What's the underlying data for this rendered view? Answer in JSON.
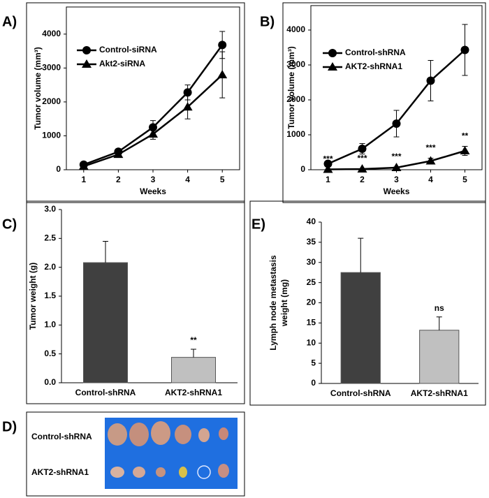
{
  "chart_data": [
    {
      "type": "line",
      "panel_label": "A)",
      "xlabel": "Weeks",
      "ylabel": "Tumor volume (mm³)",
      "categories": [
        "1",
        "2",
        "3",
        "4",
        "5"
      ],
      "ylim": [
        0,
        4800
      ],
      "yticks": [
        0,
        1000,
        2000,
        3000,
        4000
      ],
      "grid": false,
      "series": [
        {
          "name": "Control-siRNA",
          "color": "#000000",
          "marker": "circle",
          "values": [
            150,
            530,
            1250,
            2280,
            3680
          ],
          "errors": [
            50,
            80,
            200,
            220,
            400
          ]
        },
        {
          "name": "Akt2-siRNA",
          "color": "#000000",
          "marker": "triangle",
          "values": [
            100,
            450,
            1050,
            1850,
            2800
          ],
          "errors": [
            40,
            60,
            150,
            350,
            680
          ]
        }
      ]
    },
    {
      "type": "line",
      "panel_label": "B)",
      "xlabel": "Weeks",
      "ylabel": "Tumor volume (mm³)",
      "categories": [
        "1",
        "2",
        "3",
        "4",
        "5"
      ],
      "ylim": [
        0,
        4700
      ],
      "yticks": [
        0,
        1000,
        2000,
        3000,
        4000
      ],
      "grid": false,
      "annotations": [
        "***",
        "***",
        "***",
        "***",
        "**"
      ],
      "series": [
        {
          "name": "Control-shRNA",
          "color": "#000000",
          "marker": "circle",
          "values": [
            170,
            600,
            1320,
            2550,
            3430
          ],
          "errors": [
            30,
            150,
            380,
            580,
            730
          ]
        },
        {
          "name": "AKT2-shRNA1",
          "color": "#000000",
          "marker": "triangle",
          "values": [
            10,
            20,
            60,
            250,
            540
          ],
          "errors": [
            5,
            10,
            20,
            80,
            130
          ]
        }
      ]
    },
    {
      "type": "bar",
      "panel_label": "C)",
      "ylabel": "Tumor weight (g)",
      "categories": [
        "Control-shRNA",
        "AKT2-shRNA1"
      ],
      "values": [
        2.08,
        0.44
      ],
      "errors": [
        0.37,
        0.14
      ],
      "colors": [
        "#404040",
        "#c0c0c0"
      ],
      "annotations": [
        null,
        "**"
      ],
      "ylim": [
        0,
        3
      ],
      "yticks": [
        {
          "value": 0,
          "label": "0.0"
        },
        0.5,
        {
          "value": 1,
          "label": "1.0"
        },
        1.5,
        {
          "value": 2,
          "label": "2.0"
        },
        2.5,
        {
          "value": 3,
          "label": "3.0"
        }
      ],
      "grid": false
    },
    {
      "type": "bar",
      "panel_label": "E)",
      "ylabel": [
        "Lymph node metastasis",
        "weight (mg)"
      ],
      "categories": [
        "Control-shRNA",
        "AKT2-shRNA1"
      ],
      "values": [
        27.5,
        13.2
      ],
      "errors": [
        8.5,
        3.3
      ],
      "colors": [
        "#404040",
        "#c0c0c0"
      ],
      "annotations": [
        null,
        "ns"
      ],
      "ylim": [
        0,
        40
      ],
      "yticks": [
        0,
        5,
        10,
        15,
        20,
        25,
        30,
        35,
        40
      ],
      "grid": false
    }
  ],
  "panel_d": {
    "label": "D)",
    "rows": [
      "Control-shRNA",
      "AKT2-shRNA1"
    ]
  }
}
